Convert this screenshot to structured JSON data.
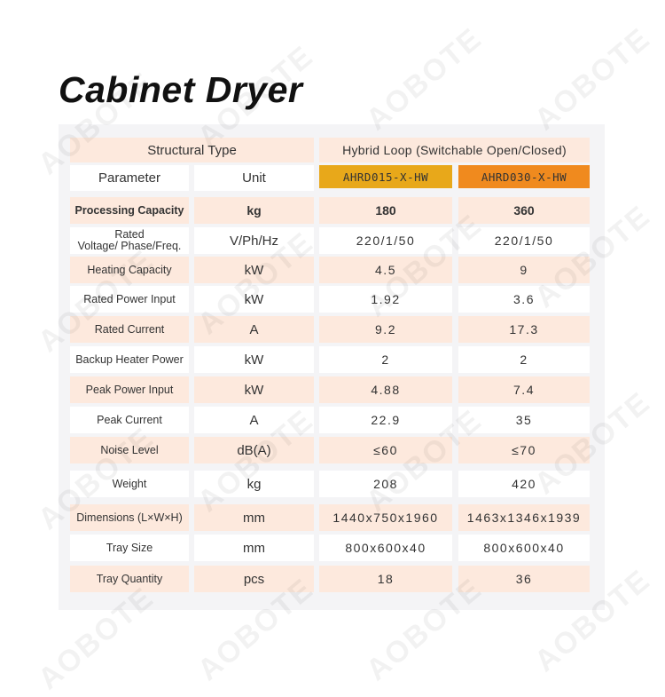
{
  "title": "Cabinet Dryer",
  "watermark": "AOBOTE",
  "colors": {
    "row_peach": "#fde9dd",
    "model1": "#e8a81a",
    "model2": "#f08a1e",
    "panel": "#f4f4f6"
  },
  "header": {
    "structural_type": "Structural Type",
    "structural_value": "Hybrid Loop (Switchable Open/Closed)",
    "parameter": "Parameter",
    "unit": "Unit",
    "model1": "AHRD015-X-HW",
    "model2": "AHRD030-X-HW"
  },
  "rows": [
    {
      "param": "Processing Capacity",
      "unit": "kg",
      "v1": "180",
      "v2": "360"
    },
    {
      "param": "Rated Voltage/ Phase/Freq.",
      "unit": "V/Ph/Hz",
      "v1": "220/1/50",
      "v2": "220/1/50"
    },
    {
      "param": "Heating Capacity",
      "unit": "kW",
      "v1": "4.5",
      "v2": "9"
    },
    {
      "param": "Rated Power Input",
      "unit": "kW",
      "v1": "1.92",
      "v2": "3.6"
    },
    {
      "param": "Rated Current",
      "unit": "A",
      "v1": "9.2",
      "v2": "17.3"
    },
    {
      "param": "Backup Heater Power",
      "unit": "kW",
      "v1": "2",
      "v2": "2"
    },
    {
      "param": "Peak Power Input",
      "unit": "kW",
      "v1": "4.88",
      "v2": "7.4"
    },
    {
      "param": "Peak Current",
      "unit": "A",
      "v1": "22.9",
      "v2": "35"
    },
    {
      "param": "Noise Level",
      "unit": "dB(A)",
      "v1": "≤60",
      "v2": "≤70"
    },
    {
      "param": "Weight",
      "unit": "kg",
      "v1": "208",
      "v2": "420"
    },
    {
      "param": "Dimensions (L×W×H)",
      "unit": "mm",
      "v1": "1440x750x1960",
      "v2": "1463x1346x1939"
    },
    {
      "param": "Tray Size",
      "unit": "mm",
      "v1": "800x600x40",
      "v2": "800x600x40"
    },
    {
      "param": "Tray Quantity",
      "unit": "pcs",
      "v1": "18",
      "v2": "36"
    }
  ]
}
